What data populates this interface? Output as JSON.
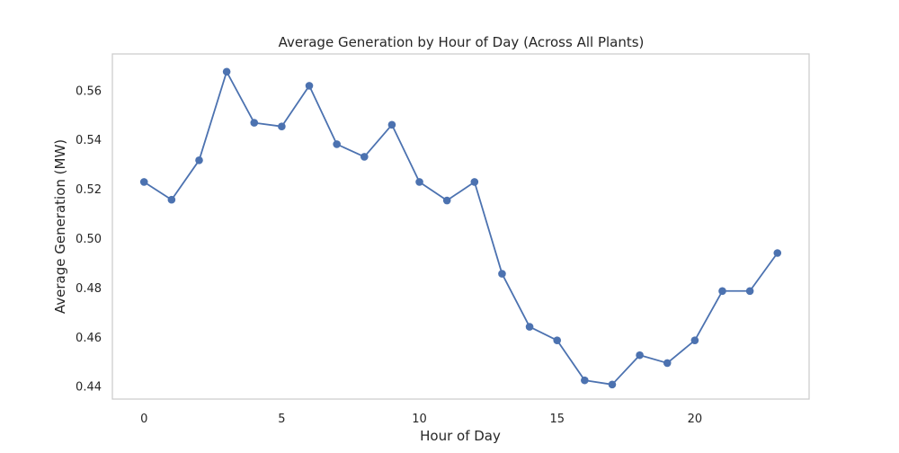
{
  "chart_data": {
    "type": "line",
    "title": "Average Generation by Hour of Day (Across All Plants)",
    "xlabel": "Hour of Day",
    "ylabel": "Average Generation (MW)",
    "xlim": [
      -1.15,
      24.15
    ],
    "ylim": [
      0.4348,
      0.5747
    ],
    "x_ticks": [
      0,
      5,
      10,
      15,
      20
    ],
    "y_ticks": [
      0.44,
      0.46,
      0.48,
      0.5,
      0.52,
      0.54,
      0.56
    ],
    "x_tick_labels": [
      "0",
      "5",
      "10",
      "15",
      "20"
    ],
    "y_tick_labels": [
      "0.44",
      "0.46",
      "0.48",
      "0.50",
      "0.52",
      "0.54",
      "0.56"
    ],
    "grid": false,
    "legend": "none",
    "series": [
      {
        "color": "#4c72b0",
        "marker": "circle",
        "x": [
          0,
          1,
          2,
          3,
          4,
          5,
          6,
          7,
          8,
          9,
          10,
          11,
          12,
          13,
          14,
          15,
          16,
          17,
          18,
          19,
          20,
          21,
          22,
          23
        ],
        "y": [
          0.5228,
          0.5156,
          0.5316,
          0.5675,
          0.5468,
          0.5453,
          0.5618,
          0.5381,
          0.533,
          0.546,
          0.5228,
          0.5153,
          0.5228,
          0.4856,
          0.4641,
          0.4586,
          0.4424,
          0.4407,
          0.4526,
          0.4494,
          0.4586,
          0.4786,
          0.4786,
          0.494
        ]
      }
    ]
  },
  "colors": {
    "line": "#4c72b0",
    "axes_edge": "#cccccc",
    "text": "#262626"
  }
}
